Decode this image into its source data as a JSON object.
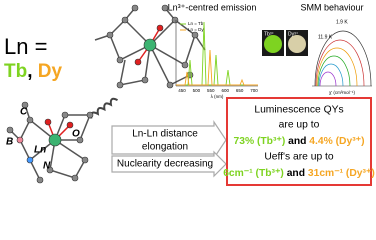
{
  "ln_label": {
    "prefix": "Ln = ",
    "tb": "Tb",
    "sep": ", ",
    "dy": "Dy"
  },
  "atom_labels": [
    "C",
    "B",
    "Ln",
    "O",
    "N"
  ],
  "emission": {
    "title": "Ln³⁺-centred emission",
    "legend": [
      "Ln = Tb",
      "Ln = Dy"
    ],
    "xticks": [
      450,
      500,
      550,
      600,
      650,
      700
    ],
    "xlabel": "λ (nm)",
    "images": [
      "Tb³⁺",
      "Dy³⁺"
    ]
  },
  "smm": {
    "title": "SMM behaviour",
    "labels": [
      "1.9 K",
      "11.9 K"
    ],
    "xlabel": "χ' (cm³mol⁻¹)"
  },
  "arrows": [
    [
      "Ln-Ln distance",
      "elongation"
    ],
    [
      "Nuclearity decreasing"
    ]
  ],
  "results": {
    "line1": "Luminescence QYs",
    "line2": "are up to",
    "line3": [
      "73% (Tb³⁺)",
      " and ",
      "4.4% (Dy³⁺)"
    ],
    "line4": "Ueff's are up to",
    "line5": [
      "6cm⁻¹ (Tb³⁺)",
      " and ",
      "31cm⁻¹ (Dy³⁺)"
    ]
  }
}
